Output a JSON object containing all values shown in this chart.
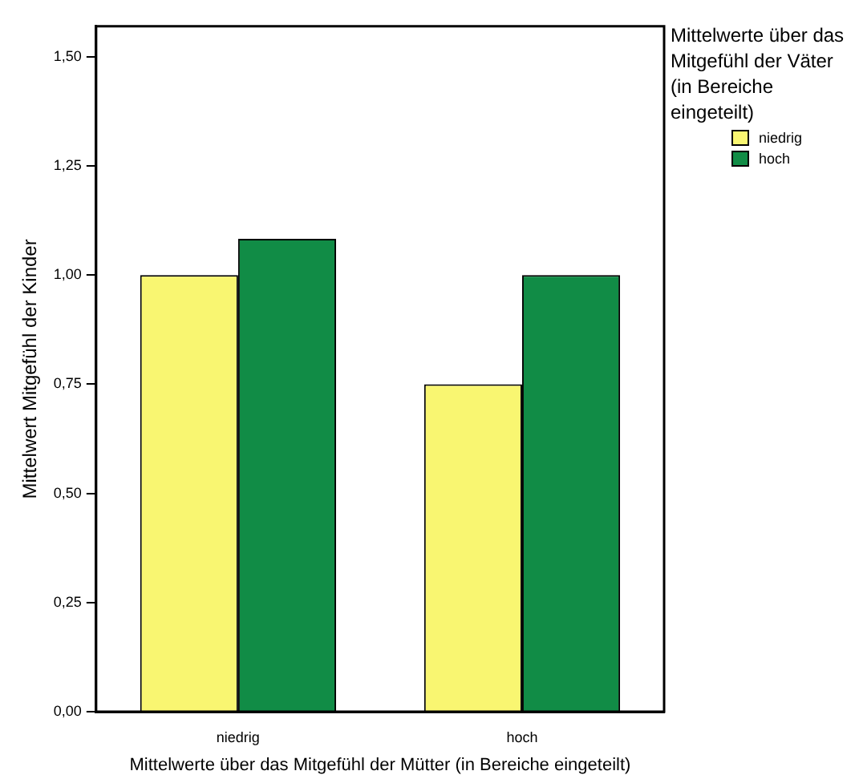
{
  "chart_data": {
    "type": "bar",
    "categories": [
      "niedrig",
      "hoch"
    ],
    "series": [
      {
        "name": "niedrig",
        "color": "#f9f671",
        "values": [
          1.0,
          0.75
        ]
      },
      {
        "name": "hoch",
        "color": "#118c46",
        "values": [
          1.083,
          1.0
        ]
      }
    ],
    "xlabel": "Mittelwerte über das Mitgefühl der Mütter (in Bereiche eingeteilt)",
    "ylabel": "Mittelwert Mitgefühl der Kinder",
    "legend_title": "Mittelwerte über das Mitgefühl der Väter (in Bereiche eingeteilt)",
    "ylim": [
      0,
      1.57
    ],
    "yticks": [
      {
        "value": 0,
        "label": "0,00"
      },
      {
        "value": 0.25,
        "label": "0,25"
      },
      {
        "value": 0.5,
        "label": "0,50"
      },
      {
        "value": 0.75,
        "label": "0,75"
      },
      {
        "value": 1,
        "label": "1,00"
      },
      {
        "value": 1.25,
        "label": "1,25"
      },
      {
        "value": 1.5,
        "label": "1,50"
      }
    ],
    "grid": false,
    "legend": "top right"
  }
}
